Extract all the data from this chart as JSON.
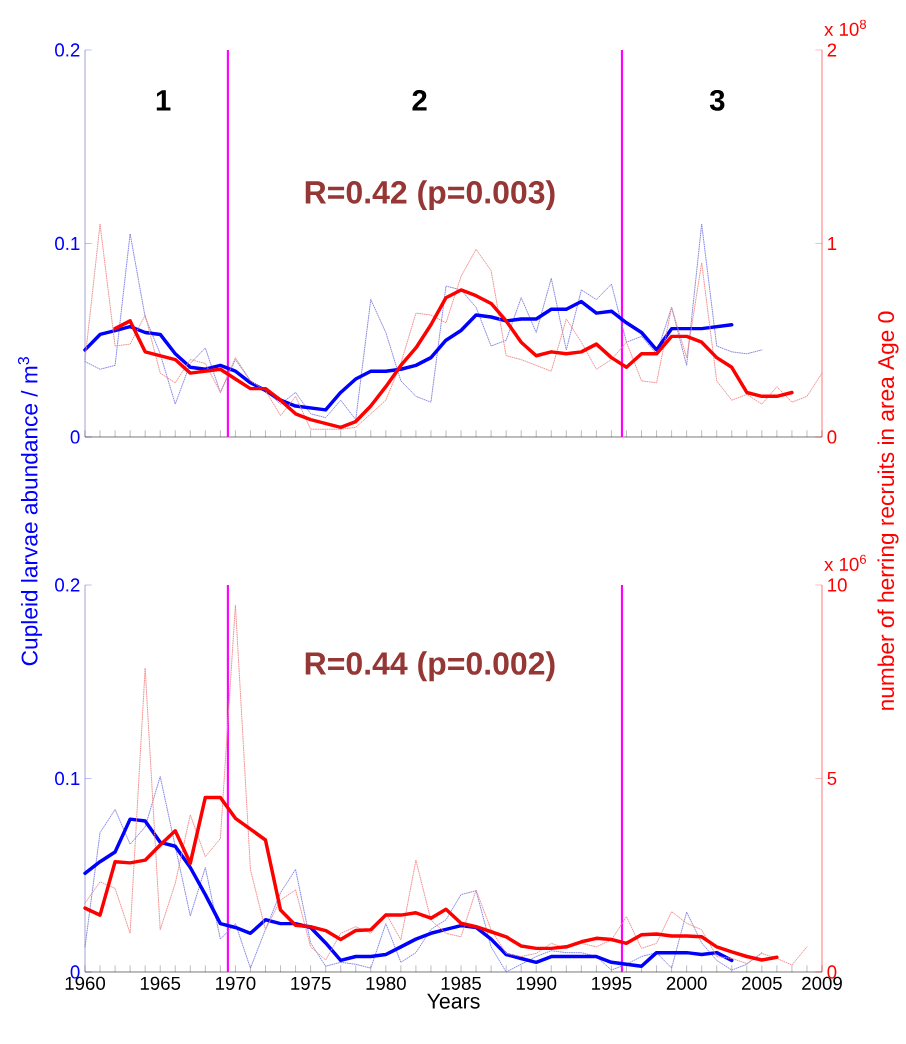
{
  "chart_data": [
    {
      "type": "line",
      "marker": "none",
      "tick_labels": "y",
      "ylabel": "Cupleid larvae abundance / m$^{3}$",
      "y2label": "number of herring recruits in area Age 0",
      "x": [
        1960,
        1961,
        1962,
        1963,
        1964,
        1965,
        1966,
        1967,
        1968,
        1969,
        1970,
        1971,
        1972,
        1973,
        1974,
        1975,
        1976,
        1977,
        1978,
        1979,
        1980,
        1981,
        1982,
        1983,
        1984,
        1985,
        1986,
        1987,
        1988,
        1989,
        1990,
        1991,
        1992,
        1993,
        1994,
        1995,
        1996,
        1997,
        1998,
        1999,
        2000,
        2001,
        2002,
        2003,
        2004,
        2005,
        2006,
        2007,
        2008,
        2009
      ],
      "xlim": [
        1960,
        2009
      ],
      "xticks": [
        1960,
        {
          "value": 1961,
          "label": null
        },
        {
          "value": 1962,
          "label": null
        },
        {
          "value": 1963,
          "label": null
        },
        {
          "value": 1964,
          "label": null
        },
        1965,
        {
          "value": 1966,
          "label": null
        },
        {
          "value": 1967,
          "label": null
        },
        {
          "value": 1968,
          "label": null
        },
        {
          "value": 1969,
          "label": null
        },
        1970,
        {
          "value": 1971,
          "label": null
        },
        {
          "value": 1972,
          "label": null
        },
        {
          "value": 1973,
          "label": null
        },
        {
          "value": 1974,
          "label": null
        },
        1975,
        {
          "value": 1976,
          "label": null
        },
        {
          "value": 1977,
          "label": null
        },
        {
          "value": 1978,
          "label": null
        },
        {
          "value": 1979,
          "label": null
        },
        1980,
        {
          "value": 1981,
          "label": null
        },
        {
          "value": 1982,
          "label": null
        },
        {
          "value": 1983,
          "label": null
        },
        {
          "value": 1984,
          "label": null
        },
        1985,
        {
          "value": 1986,
          "label": null
        },
        {
          "value": 1987,
          "label": null
        },
        {
          "value": 1988,
          "label": null
        },
        {
          "value": 1989,
          "label": null
        },
        1990,
        {
          "value": 1991,
          "label": null
        },
        {
          "value": 1992,
          "label": null
        },
        {
          "value": 1993,
          "label": null
        },
        {
          "value": 1994,
          "label": null
        },
        1995,
        {
          "value": 1996,
          "label": null
        },
        {
          "value": 1997,
          "label": null
        },
        {
          "value": 1998,
          "label": null
        },
        {
          "value": 1999,
          "label": null
        },
        2000,
        {
          "value": 2001,
          "label": null
        },
        {
          "value": 2002,
          "label": null
        },
        {
          "value": 2003,
          "label": null
        },
        {
          "value": 2004,
          "label": null
        },
        2005,
        {
          "value": 2006,
          "label": null
        },
        {
          "value": 2007,
          "label": null
        },
        {
          "value": 2008,
          "label": null
        },
        2009
      ],
      "ylim": [
        0,
        0.2
      ],
      "yticks": [
        0,
        0.1,
        0.2
      ],
      "y2lim": [
        0,
        2
      ],
      "y2ticks": [
        0,
        1,
        2
      ],
      "series": [
        {
          "color": "#7f7fe0",
          "line_style": "dotted",
          "values": [
            0.039,
            0.035,
            0.037,
            0.105,
            0.062,
            0.043,
            0.017,
            0.038,
            0.046,
            0.023,
            0.04,
            0.029,
            0.024,
            0.017,
            0.023,
            0.012,
            0.01,
            0.019,
            0.009,
            0.071,
            0.054,
            0.029,
            0.021,
            0.018,
            0.078,
            0.076,
            0.067,
            0.047,
            0.05,
            0.072,
            0.054,
            0.082,
            0.045,
            0.076,
            0.071,
            0.079,
            0.049,
            0.052,
            0.043,
            0.067,
            0.037,
            0.11,
            0.047,
            0.044,
            0.043,
            0.045,
            null,
            null,
            null,
            null
          ]
        },
        {
          "color": "#f08a8a",
          "line_style": "dotted",
          "axis": "y2",
          "values": [
            0.4,
            1.1,
            0.47,
            0.48,
            0.63,
            0.33,
            0.28,
            0.4,
            0.38,
            0.23,
            0.41,
            0.29,
            0.24,
            0.11,
            0.21,
            0.04,
            0.04,
            0.04,
            0.05,
            0.12,
            0.19,
            0.38,
            0.64,
            0.63,
            0.59,
            0.83,
            0.97,
            0.86,
            0.42,
            0.4,
            0.37,
            0.34,
            0.61,
            0.49,
            0.35,
            0.4,
            0.49,
            0.29,
            0.28,
            0.67,
            0.41,
            0.9,
            0.29,
            0.19,
            0.22,
            0.17,
            0.26,
            0.18,
            0.21,
            0.33
          ]
        },
        {
          "color": "#0000ff",
          "line_style": "solid",
          "values": [
            0.045,
            0.053,
            0.055,
            0.057,
            0.054,
            0.053,
            0.043,
            0.036,
            0.035,
            0.037,
            0.034,
            0.028,
            0.024,
            0.019,
            0.016,
            0.015,
            0.014,
            0.023,
            0.03,
            0.034,
            0.034,
            0.035,
            0.037,
            0.041,
            0.05,
            0.055,
            0.063,
            0.062,
            0.06,
            0.061,
            0.061,
            0.066,
            0.066,
            0.07,
            0.064,
            0.065,
            0.059,
            0.054,
            0.045,
            0.056,
            0.056,
            0.056,
            0.057,
            0.058,
            null,
            null,
            null,
            null,
            null,
            null
          ]
        },
        {
          "color": "#ff0000",
          "line_style": "solid",
          "axis": "y2",
          "values": [
            null,
            null,
            0.56,
            0.6,
            0.44,
            0.42,
            0.4,
            0.33,
            0.34,
            0.35,
            0.3,
            0.25,
            0.25,
            0.19,
            0.12,
            0.09,
            0.07,
            0.05,
            0.08,
            0.16,
            0.26,
            0.37,
            0.46,
            0.58,
            0.72,
            0.76,
            0.73,
            0.69,
            0.6,
            0.49,
            0.42,
            0.44,
            0.43,
            0.44,
            0.48,
            0.41,
            0.36,
            0.43,
            0.43,
            0.52,
            0.52,
            0.49,
            0.41,
            0.36,
            0.23,
            0.21,
            0.21,
            0.23,
            null,
            null
          ]
        }
      ],
      "ref_lines": [
        {
          "axis": "x",
          "value": 1969.5,
          "color": "#ff00ff"
        },
        {
          "axis": "x",
          "value": 1995.7,
          "color": "#ff00ff"
        }
      ],
      "annotations": [
        "x 10$^{8}$",
        "R=0.42 (p=0.003)",
        "1",
        "2",
        "3"
      ]
    },
    {
      "type": "line",
      "marker": "none",
      "xlabel": "Years",
      "x": [
        1960,
        1961,
        1962,
        1963,
        1964,
        1965,
        1966,
        1967,
        1968,
        1969,
        1970,
        1971,
        1972,
        1973,
        1974,
        1975,
        1976,
        1977,
        1978,
        1979,
        1980,
        1981,
        1982,
        1983,
        1984,
        1985,
        1986,
        1987,
        1988,
        1989,
        1990,
        1991,
        1992,
        1993,
        1994,
        1995,
        1996,
        1997,
        1998,
        1999,
        2000,
        2001,
        2002,
        2003,
        2004,
        2005,
        2006,
        2007,
        2008
      ],
      "xlim": [
        1960,
        2009
      ],
      "xticks": [
        1960,
        {
          "value": 1961,
          "label": null
        },
        {
          "value": 1962,
          "label": null
        },
        {
          "value": 1963,
          "label": null
        },
        {
          "value": 1964,
          "label": null
        },
        1965,
        {
          "value": 1966,
          "label": null
        },
        {
          "value": 1967,
          "label": null
        },
        {
          "value": 1968,
          "label": null
        },
        {
          "value": 1969,
          "label": null
        },
        1970,
        {
          "value": 1971,
          "label": null
        },
        {
          "value": 1972,
          "label": null
        },
        {
          "value": 1973,
          "label": null
        },
        {
          "value": 1974,
          "label": null
        },
        1975,
        {
          "value": 1976,
          "label": null
        },
        {
          "value": 1977,
          "label": null
        },
        {
          "value": 1978,
          "label": null
        },
        {
          "value": 1979,
          "label": null
        },
        1980,
        {
          "value": 1981,
          "label": null
        },
        {
          "value": 1982,
          "label": null
        },
        {
          "value": 1983,
          "label": null
        },
        {
          "value": 1984,
          "label": null
        },
        1985,
        {
          "value": 1986,
          "label": null
        },
        {
          "value": 1987,
          "label": null
        },
        {
          "value": 1988,
          "label": null
        },
        {
          "value": 1989,
          "label": null
        },
        1990,
        {
          "value": 1991,
          "label": null
        },
        {
          "value": 1992,
          "label": null
        },
        {
          "value": 1993,
          "label": null
        },
        {
          "value": 1994,
          "label": null
        },
        1995,
        {
          "value": 1996,
          "label": null
        },
        {
          "value": 1997,
          "label": null
        },
        {
          "value": 1998,
          "label": null
        },
        {
          "value": 1999,
          "label": null
        },
        2000,
        {
          "value": 2001,
          "label": null
        },
        {
          "value": 2002,
          "label": null
        },
        {
          "value": 2003,
          "label": null
        },
        {
          "value": 2004,
          "label": null
        },
        2005,
        {
          "value": 2006,
          "label": null
        },
        {
          "value": 2007,
          "label": null
        },
        {
          "value": 2008,
          "label": null
        },
        2009
      ],
      "ylim": [
        0,
        0.2
      ],
      "yticks": [
        0,
        0.1,
        0.2
      ],
      "y2lim": [
        0,
        10
      ],
      "y2ticks": [
        0,
        5,
        10
      ],
      "series": [
        {
          "color": "#7f7fe0",
          "line_style": "dotted",
          "values": [
            0.013,
            0.072,
            0.084,
            0.066,
            0.075,
            0.101,
            0.065,
            0.029,
            0.054,
            0.017,
            0.025,
            0.002,
            0.022,
            0.041,
            0.053,
            0.015,
            0.003,
            0.005,
            0.004,
            0.002,
            0.025,
            0.005,
            0.01,
            0.022,
            0.027,
            0.04,
            0.042,
            0.013,
            0.0,
            0.004,
            0.008,
            0.011,
            0.01,
            0.01,
            0.008,
            0.001,
            0.004,
            0.008,
            0.01,
            0.002,
            0.031,
            0.015,
            0.006,
            0.001,
            0.004,
            0.01,
            null,
            null,
            null
          ]
        },
        {
          "color": "#f08a8a",
          "line_style": "dotted",
          "axis": "y2",
          "values": [
            1.78,
            2.33,
            2.16,
            1.0,
            7.85,
            1.09,
            2.29,
            4.06,
            2.98,
            3.45,
            9.48,
            2.64,
            1.09,
            1.86,
            2.12,
            0.65,
            0.31,
            1.0,
            1.17,
            1.0,
            1.52,
            0.83,
            2.89,
            1.34,
            1.0,
            0.91,
            2.12,
            1.09,
            0.48,
            0.4,
            0.48,
            0.74,
            0.61,
            0.74,
            0.65,
            0.83,
            1.43,
            0.61,
            0.74,
            1.56,
            1.26,
            1.09,
            0.4,
            0.35,
            0.22,
            0.48,
            0.35,
            0.18,
            0.65
          ]
        },
        {
          "color": "#0000ff",
          "line_style": "solid",
          "values": [
            0.051,
            0.057,
            0.062,
            0.079,
            0.078,
            0.067,
            0.065,
            0.054,
            0.04,
            0.025,
            0.023,
            0.02,
            0.027,
            0.025,
            0.025,
            0.023,
            0.015,
            0.006,
            0.008,
            0.008,
            0.009,
            0.013,
            0.017,
            0.02,
            0.022,
            0.024,
            0.023,
            0.017,
            0.009,
            0.007,
            0.005,
            0.008,
            0.008,
            0.008,
            0.008,
            0.005,
            0.004,
            0.003,
            0.01,
            0.01,
            0.01,
            0.009,
            0.01,
            0.006,
            null,
            null,
            null,
            null,
            null
          ]
        },
        {
          "color": "#ff0000",
          "line_style": "solid",
          "axis": "y2",
          "values": [
            1.65,
            1.47,
            2.85,
            2.82,
            2.89,
            3.28,
            3.65,
            2.81,
            4.51,
            4.51,
            3.97,
            3.69,
            3.41,
            1.6,
            1.21,
            1.17,
            1.07,
            0.84,
            1.07,
            1.09,
            1.47,
            1.47,
            1.53,
            1.39,
            1.62,
            1.26,
            1.17,
            1.04,
            0.91,
            0.67,
            0.61,
            0.61,
            0.65,
            0.78,
            0.87,
            0.84,
            0.74,
            0.96,
            0.98,
            0.93,
            0.93,
            0.91,
            0.65,
            0.52,
            0.4,
            0.31,
            0.38,
            null,
            null
          ]
        }
      ],
      "ref_lines": [
        {
          "axis": "x",
          "value": 1969.5,
          "color": "#ff00ff"
        },
        {
          "axis": "x",
          "value": 1995.7,
          "color": "#ff00ff"
        }
      ],
      "annotations": [
        "x 10$^{6}$",
        "R=0.44 (p=0.002)"
      ]
    }
  ]
}
